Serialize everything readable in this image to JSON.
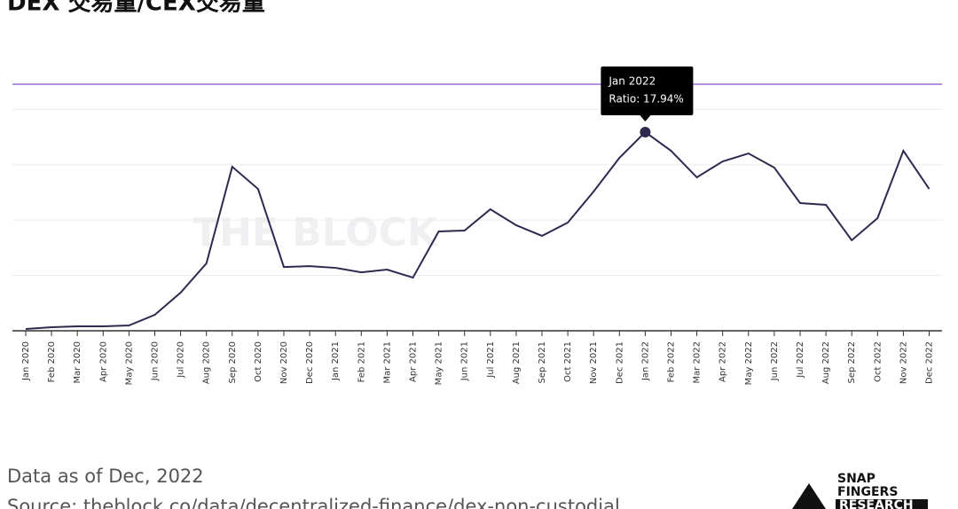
{
  "chart_data": {
    "type": "line",
    "title": "DEX 交易量/CEX交易量",
    "watermark": "THE BLOCK",
    "categories": [
      "Jan 2020",
      "Feb 2020",
      "Mar 2020",
      "Apr 2020",
      "May 2020",
      "Jun 2020",
      "Jul 2020",
      "Aug 2020",
      "Sep 2020",
      "Oct 2020",
      "Nov 2020",
      "Dec 2020",
      "Jan 2021",
      "Feb 2021",
      "Mar 2021",
      "Apr 2021",
      "May 2021",
      "Jun 2021",
      "Jul 2021",
      "Aug 2021",
      "Sep 2021",
      "Oct 2021",
      "Nov 2021",
      "Dec 2021",
      "Jan 2022",
      "Feb 2022",
      "Mar 2022",
      "Apr 2022",
      "May 2022",
      "Jun 2022",
      "Jul 2022",
      "Aug 2022",
      "Sep 2022",
      "Oct 2022",
      "Nov 2022",
      "Dec 2022"
    ],
    "series": [
      {
        "name": "Ratio",
        "color": "#2e2a4f",
        "values": [
          0.16,
          0.32,
          0.4,
          0.4,
          0.48,
          1.44,
          3.44,
          6.08,
          14.81,
          12.81,
          5.76,
          5.84,
          5.68,
          5.28,
          5.52,
          4.8,
          8.97,
          9.05,
          10.97,
          9.53,
          8.57,
          9.77,
          12.57,
          15.61,
          17.94,
          16.25,
          13.85,
          15.29,
          16.01,
          14.73,
          11.53,
          11.37,
          8.17,
          10.17,
          16.25,
          12.81
        ]
      }
    ],
    "ylim": [
      0,
      22.26
    ],
    "yticks": [
      0,
      5,
      10,
      15,
      20
    ],
    "grid": true,
    "tooltip": {
      "index": 24,
      "text": "Ratio: 17.94%"
    },
    "footer": {
      "note": "Data as of Dec, 2022",
      "source": "Source: theblock.co/data/decentralized-finance/dex-non-custodial"
    },
    "logo": [
      "SNAP",
      "FINGERS",
      "RESEARCH"
    ]
  }
}
